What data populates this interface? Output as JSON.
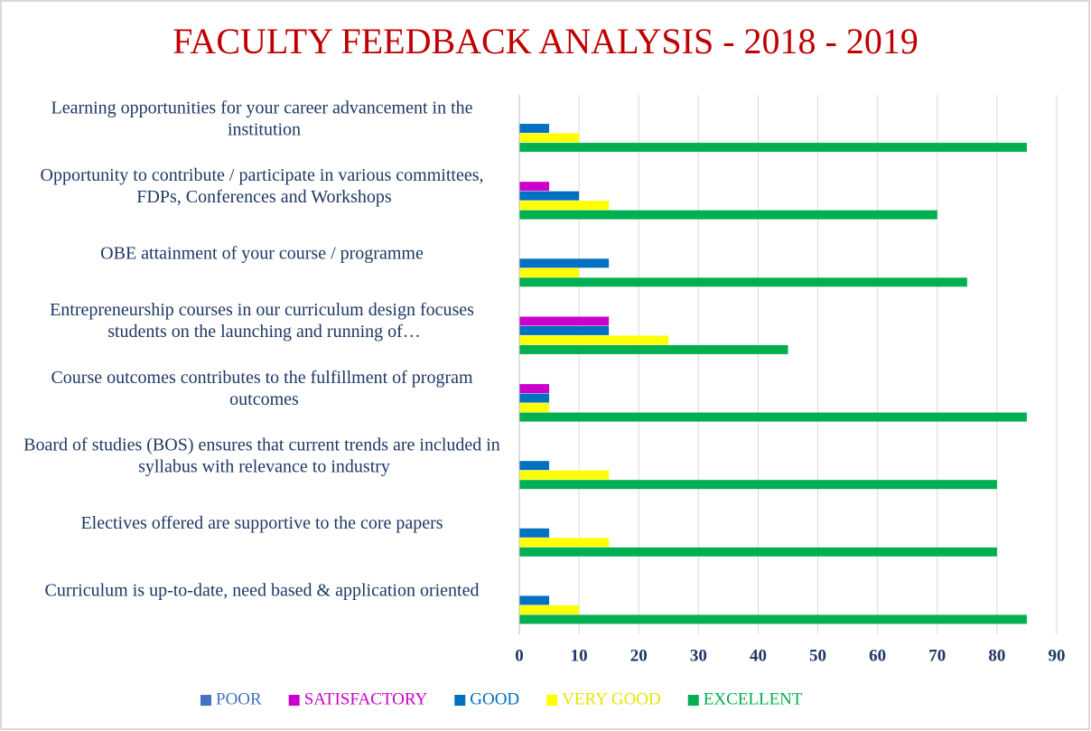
{
  "chart_data": {
    "type": "bar",
    "orientation": "horizontal",
    "title": "FACULTY FEEDBACK ANALYSIS - 2018 - 2019",
    "categories": [
      "Learning opportunities for your career advancement in the institution",
      "Opportunity to contribute / participate in various committees, FDPs, Conferences and Workshops",
      "OBE attainment of your course / programme",
      "Entrepreneurship courses in our curriculum design focuses students on the launching and running of…",
      "Course outcomes contributes to the fulfillment of program outcomes",
      "Board of studies (BOS) ensures that current trends are included in syllabus with relevance to industry",
      "Electives offered are supportive to the core papers",
      "Curriculum is up-to-date, need based & application oriented"
    ],
    "series": [
      {
        "name": "POOR",
        "color": "#4472c4",
        "values": [
          0,
          0,
          0,
          0,
          0,
          0,
          0,
          0
        ]
      },
      {
        "name": "SATISFACTORY",
        "color": "#cc00cc",
        "values": [
          0,
          5,
          0,
          15,
          5,
          0,
          0,
          0
        ]
      },
      {
        "name": "GOOD",
        "color": "#0070c0",
        "values": [
          5,
          10,
          15,
          15,
          5,
          5,
          5,
          5
        ]
      },
      {
        "name": "VERY GOOD",
        "color": "#ffff00",
        "values": [
          10,
          15,
          10,
          25,
          5,
          15,
          15,
          10
        ]
      },
      {
        "name": "EXCELLENT",
        "color": "#00b050",
        "values": [
          85,
          70,
          75,
          45,
          85,
          80,
          80,
          85
        ]
      }
    ],
    "xlim": [
      0,
      90
    ],
    "xticks": [
      0,
      10,
      20,
      30,
      40,
      50,
      60,
      70,
      80,
      90
    ],
    "grid": true,
    "legend": "bottom"
  }
}
